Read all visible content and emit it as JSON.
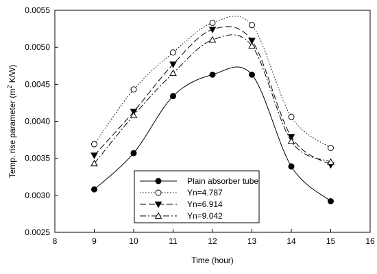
{
  "chart_data": {
    "type": "line",
    "xlabel": "Time (hour)",
    "ylabel_main": "Temp. rise parameter (m",
    "ylabel_sup": "2",
    "ylabel_tail": " K/W)",
    "xlim": [
      8,
      16
    ],
    "ylim": [
      0.0025,
      0.0055
    ],
    "x_ticks": [
      8,
      9,
      10,
      11,
      12,
      13,
      14,
      15,
      16
    ],
    "y_ticks": [
      0.0025,
      0.003,
      0.0035,
      0.004,
      0.0045,
      0.005,
      0.0055
    ],
    "y_tick_labels": [
      "0.0025",
      "0.0030",
      "0.0035",
      "0.0040",
      "0.0045",
      "0.0050",
      "0.0055"
    ],
    "grid": false,
    "legend_position": "bottom-center",
    "series": [
      {
        "name": "Plain absorber tube",
        "marker": "filled-circle",
        "line": "solid",
        "x": [
          9,
          10,
          11,
          12,
          13,
          14,
          15
        ],
        "y": [
          0.00308,
          0.00357,
          0.00434,
          0.00463,
          0.00463,
          0.00339,
          0.00292
        ]
      },
      {
        "name": "Yn=4.787",
        "marker": "open-circle",
        "line": "dotted",
        "x": [
          9,
          10,
          11,
          12,
          13,
          14,
          15
        ],
        "y": [
          0.00369,
          0.00443,
          0.00493,
          0.00533,
          0.0053,
          0.00406,
          0.00364
        ]
      },
      {
        "name": "Yn=6.914",
        "marker": "filled-triangle-down",
        "line": "dashed",
        "x": [
          9,
          10,
          11,
          12,
          13,
          14,
          15
        ],
        "y": [
          0.00354,
          0.00413,
          0.00477,
          0.00524,
          0.00509,
          0.00379,
          0.00341
        ]
      },
      {
        "name": "Yn=9.042",
        "marker": "open-triangle-up",
        "line": "dash-dot",
        "x": [
          9,
          10,
          11,
          12,
          13,
          14,
          15
        ],
        "y": [
          0.00343,
          0.00408,
          0.00465,
          0.0051,
          0.00502,
          0.00373,
          0.00345
        ]
      }
    ]
  }
}
